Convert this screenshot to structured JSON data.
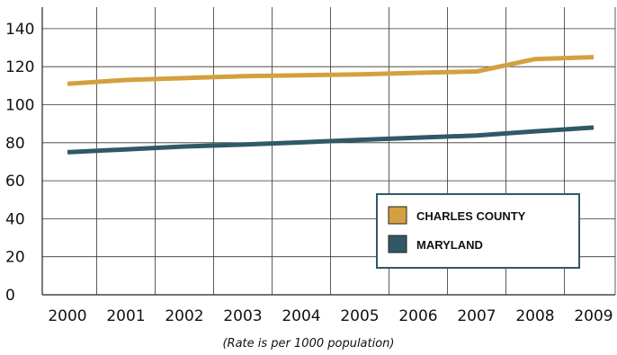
{
  "chart_data": {
    "type": "line",
    "x": [
      "2000",
      "2001",
      "2002",
      "2003",
      "2004",
      "2005",
      "2006",
      "2007",
      "2008",
      "2009"
    ],
    "series": [
      {
        "name": "CHARLES COUNTY",
        "color": "#d4a03f",
        "values": [
          111,
          113,
          114,
          115,
          115.5,
          116,
          116.8,
          117.5,
          124,
          125
        ]
      },
      {
        "name": "MARYLAND",
        "color": "#2f5966",
        "values": [
          75,
          76.5,
          78,
          79,
          80.2,
          81.5,
          82.7,
          83.8,
          86,
          88
        ]
      }
    ],
    "yticks": [
      "0",
      "20",
      "40",
      "60",
      "80",
      "100",
      "120",
      "140"
    ],
    "ylim": [
      0,
      150
    ],
    "grid": true,
    "legend": {
      "placement": "bottom-right",
      "border_color": "#2f5966"
    },
    "note": "(Rate is per 1000 population)"
  }
}
